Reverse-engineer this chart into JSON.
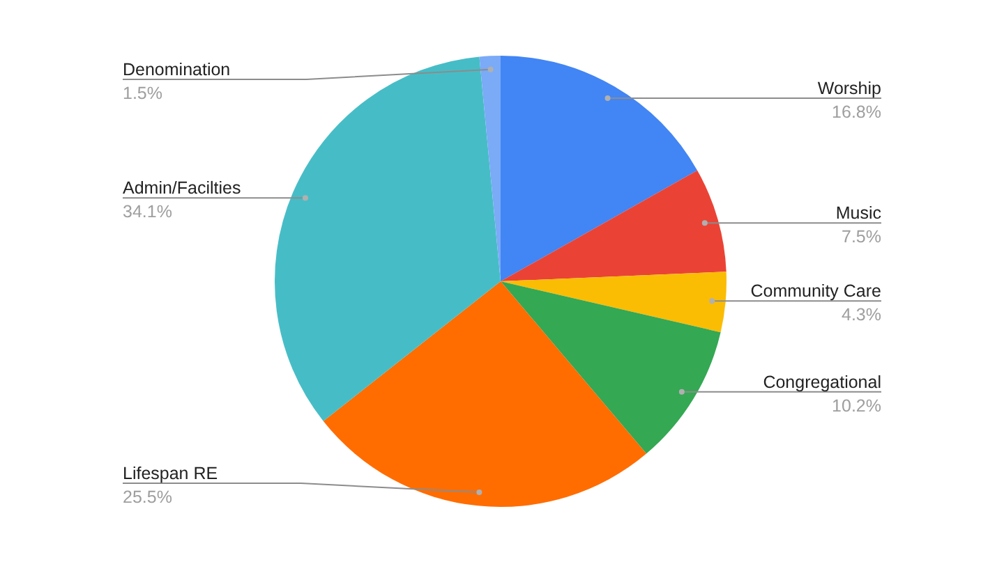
{
  "chart_data": {
    "type": "pie",
    "categories": [
      "Worship",
      "Music",
      "Community Care",
      "Congregational",
      "Lifespan RE",
      "Admin/Facilties",
      "Denomination"
    ],
    "values": [
      16.8,
      7.5,
      4.3,
      10.2,
      25.5,
      34.1,
      1.5
    ],
    "value_labels": [
      "16.8%",
      "7.5%",
      "4.3%",
      "10.2%",
      "25.5%",
      "34.1%",
      "1.5%"
    ],
    "colors": [
      "#4285f4",
      "#ea4335",
      "#fbbc04",
      "#34a853",
      "#ff6d01",
      "#46bdc6",
      "#7baaf7"
    ]
  }
}
